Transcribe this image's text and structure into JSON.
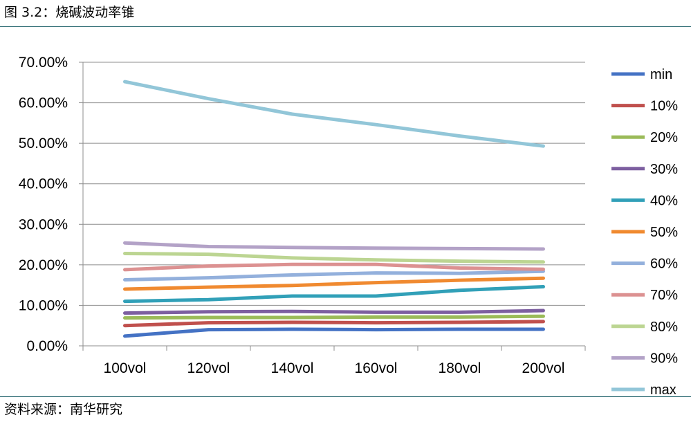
{
  "figure": {
    "title": "图 3.2：烧碱波动率锥",
    "source": "资料来源：南华研究"
  },
  "chart_data": {
    "type": "line",
    "categories": [
      "100vol",
      "120vol",
      "140vol",
      "160vol",
      "180vol",
      "200vol"
    ],
    "y_ticks": [
      "0.00%",
      "10.00%",
      "20.00%",
      "30.00%",
      "40.00%",
      "50.00%",
      "60.00%",
      "70.00%"
    ],
    "ylim": [
      0,
      70
    ],
    "grid": true,
    "legend_position": "right",
    "series": [
      {
        "name": "min",
        "color": "#4472c4",
        "values": [
          2.4,
          4.0,
          4.1,
          4.0,
          4.1,
          4.1
        ]
      },
      {
        "name": "10%",
        "color": "#c0504d",
        "values": [
          5.0,
          5.7,
          5.8,
          5.7,
          5.8,
          6.0
        ]
      },
      {
        "name": "20%",
        "color": "#9bbb59",
        "values": [
          6.9,
          7.0,
          7.0,
          7.1,
          7.1,
          7.3
        ]
      },
      {
        "name": "30%",
        "color": "#7d5fa0",
        "values": [
          8.1,
          8.4,
          8.5,
          8.3,
          8.3,
          8.7
        ]
      },
      {
        "name": "40%",
        "color": "#31a0b8",
        "values": [
          11.0,
          11.4,
          12.3,
          12.3,
          13.7,
          14.6
        ]
      },
      {
        "name": "50%",
        "color": "#f08a30",
        "values": [
          14.0,
          14.5,
          14.9,
          15.6,
          16.2,
          16.7
        ]
      },
      {
        "name": "60%",
        "color": "#93b0dc",
        "values": [
          16.3,
          16.8,
          17.5,
          18.0,
          17.9,
          18.4
        ]
      },
      {
        "name": "70%",
        "color": "#dc9191",
        "values": [
          18.8,
          19.7,
          20.1,
          20.1,
          19.2,
          18.9
        ]
      },
      {
        "name": "80%",
        "color": "#bcd592",
        "values": [
          22.8,
          22.6,
          21.7,
          21.2,
          20.9,
          20.7
        ]
      },
      {
        "name": "90%",
        "color": "#b3a2c7",
        "values": [
          25.4,
          24.5,
          24.3,
          24.1,
          24.0,
          23.9
        ]
      },
      {
        "name": "max",
        "color": "#92c6d8",
        "values": [
          65.2,
          61.0,
          57.2,
          54.6,
          51.8,
          49.3
        ]
      }
    ]
  }
}
